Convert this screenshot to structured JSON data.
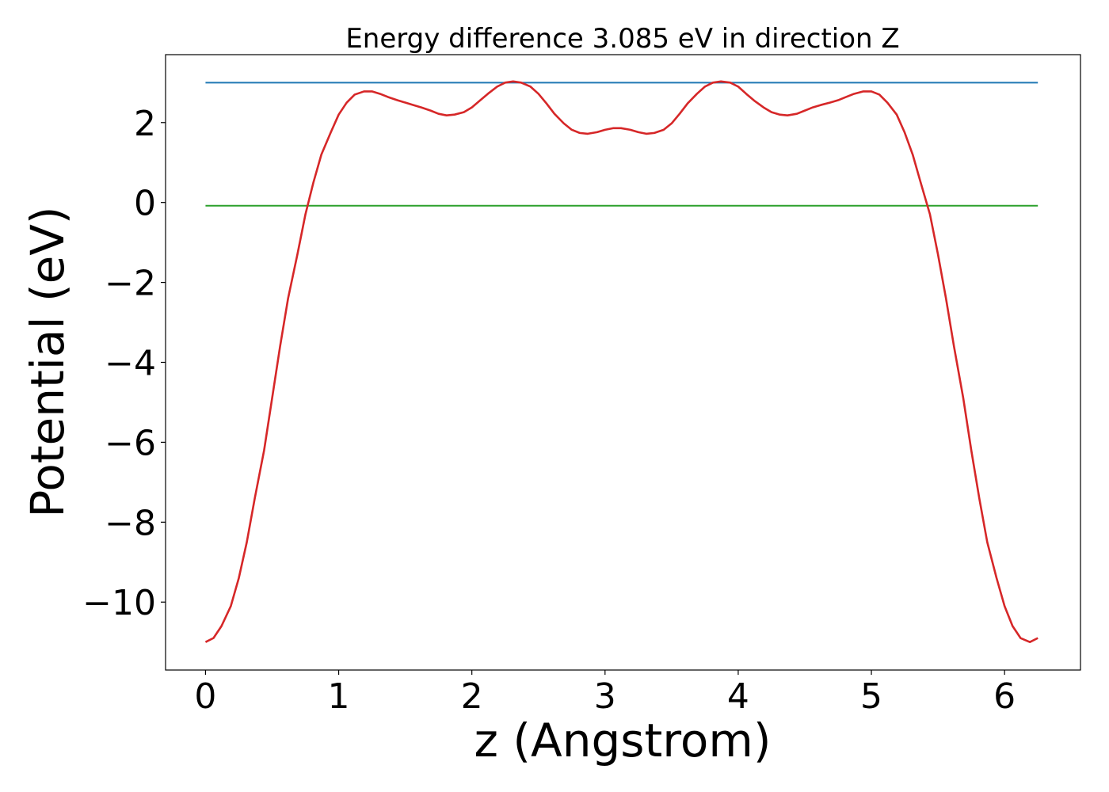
{
  "chart_data": {
    "type": "line",
    "title": "Energy difference 3.085 eV in direction Z",
    "xlabel": "z (Angstrom)",
    "ylabel": "Potential (eV)",
    "xlim": [
      -0.3,
      6.57
    ],
    "ylim": [
      -11.7,
      3.7
    ],
    "xticks": [
      0,
      1,
      2,
      3,
      4,
      5,
      6
    ],
    "xtick_labels": [
      "0",
      "1",
      "2",
      "3",
      "4",
      "5",
      "6"
    ],
    "yticks": [
      2,
      0,
      -2,
      -4,
      -6,
      -8,
      -10
    ],
    "ytick_labels": [
      "2",
      "0",
      "−2",
      "−4",
      "−6",
      "−8",
      "−10"
    ],
    "grid": false,
    "series": [
      {
        "color": "#d62728",
        "x": [
          0.0,
          0.06,
          0.12,
          0.19,
          0.25,
          0.31,
          0.37,
          0.44,
          0.5,
          0.56,
          0.62,
          0.69,
          0.75,
          0.81,
          0.87,
          0.94,
          1.0,
          1.06,
          1.12,
          1.19,
          1.25,
          1.31,
          1.37,
          1.44,
          1.5,
          1.56,
          1.62,
          1.69,
          1.75,
          1.81,
          1.87,
          1.94,
          2.0,
          2.06,
          2.12,
          2.19,
          2.25,
          2.31,
          2.37,
          2.44,
          2.5,
          2.56,
          2.62,
          2.69,
          2.75,
          2.81,
          2.87,
          2.94,
          3.0,
          3.06,
          3.12,
          3.19,
          3.25,
          3.31,
          3.37,
          3.44,
          3.5,
          3.56,
          3.62,
          3.69,
          3.75,
          3.81,
          3.87,
          3.94,
          4.0,
          4.06,
          4.12,
          4.19,
          4.25,
          4.31,
          4.37,
          4.44,
          4.5,
          4.56,
          4.62,
          4.69,
          4.75,
          4.81,
          4.87,
          4.94,
          5.0,
          5.06,
          5.12,
          5.19,
          5.25,
          5.31,
          5.37,
          5.44,
          5.5,
          5.56,
          5.62,
          5.69,
          5.75,
          5.81,
          5.87,
          5.94,
          6.0,
          6.06,
          6.12,
          6.19,
          6.25
        ],
        "y": [
          -11.0,
          -10.9,
          -10.6,
          -10.1,
          -9.4,
          -8.5,
          -7.4,
          -6.2,
          -4.9,
          -3.6,
          -2.4,
          -1.3,
          -0.3,
          0.5,
          1.2,
          1.75,
          2.2,
          2.5,
          2.7,
          2.78,
          2.78,
          2.72,
          2.64,
          2.56,
          2.5,
          2.44,
          2.38,
          2.3,
          2.22,
          2.18,
          2.2,
          2.26,
          2.38,
          2.55,
          2.72,
          2.9,
          3.0,
          3.03,
          3.0,
          2.9,
          2.72,
          2.48,
          2.22,
          1.98,
          1.82,
          1.74,
          1.72,
          1.76,
          1.82,
          1.86,
          1.86,
          1.82,
          1.76,
          1.72,
          1.74,
          1.82,
          1.98,
          2.22,
          2.48,
          2.72,
          2.9,
          3.0,
          3.03,
          3.0,
          2.9,
          2.72,
          2.55,
          2.38,
          2.26,
          2.2,
          2.18,
          2.22,
          2.3,
          2.38,
          2.44,
          2.5,
          2.56,
          2.64,
          2.72,
          2.78,
          2.78,
          2.7,
          2.5,
          2.2,
          1.75,
          1.2,
          0.5,
          -0.3,
          -1.3,
          -2.4,
          -3.6,
          -4.9,
          -6.2,
          -7.4,
          -8.5,
          -9.4,
          -10.1,
          -10.6,
          -10.9,
          -11.0,
          -10.9
        ]
      },
      {
        "color": "#1f77b4",
        "x": [
          0.0,
          6.25
        ],
        "y": [
          3.0,
          3.0
        ]
      },
      {
        "color": "#2ca02c",
        "x": [
          0.0,
          6.25
        ],
        "y": [
          -0.08,
          -0.08
        ]
      }
    ]
  }
}
